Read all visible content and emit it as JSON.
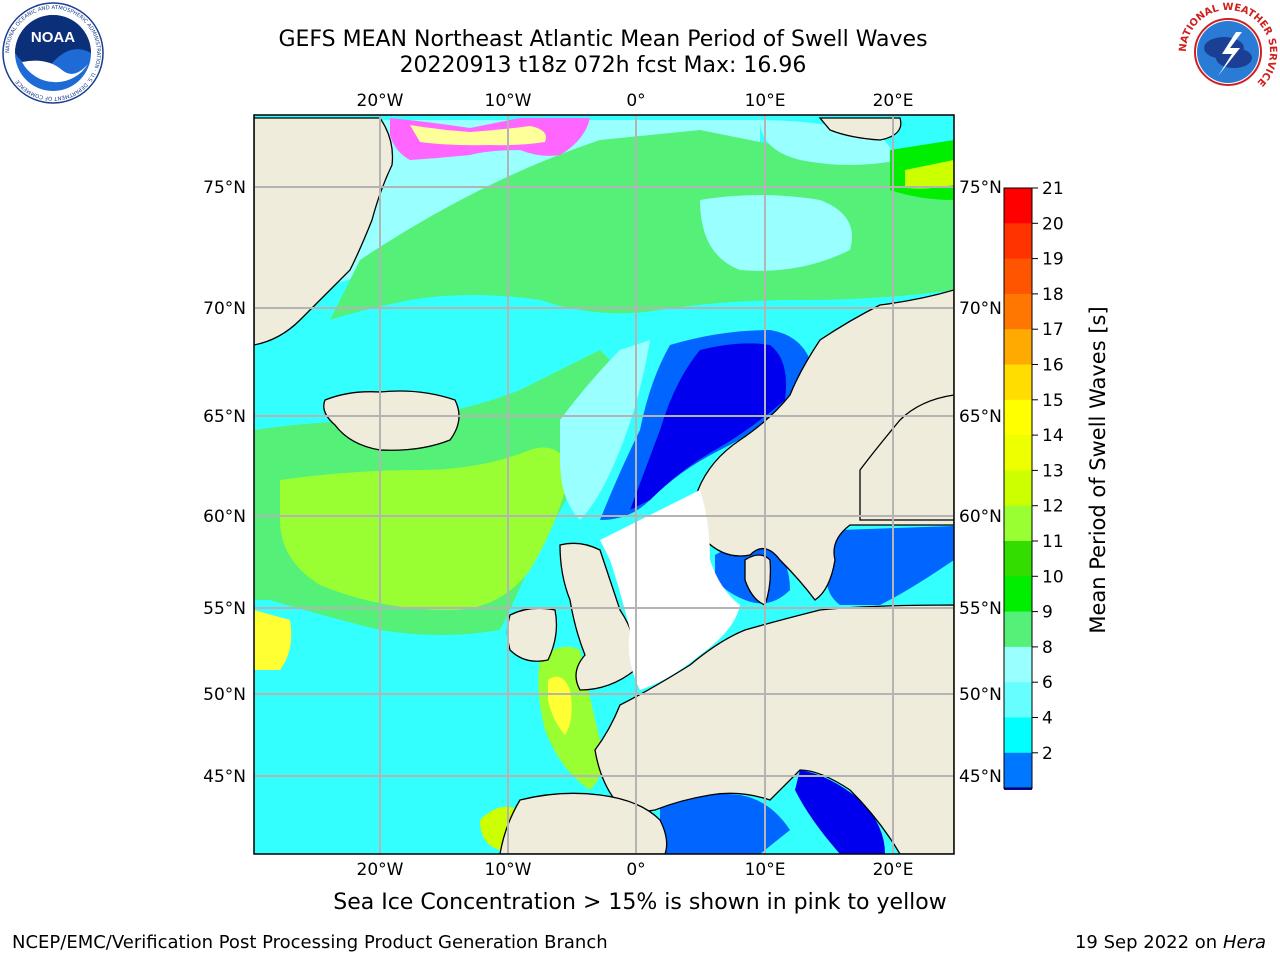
{
  "title": {
    "line1": "GEFS MEAN Northeast Atlantic Mean Period of Swell Waves",
    "line2": "20220913 t18z 072h fcst   Max: 16.96"
  },
  "map": {
    "lon_labels": [
      "20°W",
      "10°W",
      "0°",
      "10°E",
      "20°E"
    ],
    "lat_labels": [
      "75°N",
      "70°N",
      "65°N",
      "60°N",
      "55°N",
      "50°N",
      "45°N"
    ],
    "colors": {
      "land": "#efecdc",
      "ocean_base": "#33ffff",
      "ocean_alt": "#99ffff",
      "swell_green": "#55f077",
      "swell_lime": "#99ff33",
      "swell_bright": "#00ee00",
      "short_blue": "#0000ee",
      "mid_blue": "#0066ff",
      "ice_pink": "#ff66ff",
      "ice_yellow": "#ffff33",
      "grid": "#b4b4b4"
    }
  },
  "colorbar": {
    "label": "Mean Period of Swell Waves [s]",
    "ticks": [
      "21",
      "20",
      "19",
      "18",
      "17",
      "16",
      "15",
      "14",
      "13",
      "12",
      "11",
      "10",
      "9",
      "8",
      "6",
      "4",
      "2"
    ],
    "colors": [
      "#ff0000",
      "#ff3300",
      "#ff5500",
      "#ff7700",
      "#ffaa00",
      "#ffdd00",
      "#ffff00",
      "#eeff00",
      "#ccff00",
      "#99ff33",
      "#33dd00",
      "#00ee00",
      "#55f077",
      "#99ffff",
      "#66ffff",
      "#00ffff",
      "#0077ff",
      "#0000ee"
    ]
  },
  "subtitle": "Sea Ice Concentration > 15% is shown in pink to yellow",
  "footer": {
    "left": "NCEP/EMC/Verification Post Processing Product Generation Branch",
    "date": "19 Sep 2022 on",
    "host": "Hera"
  },
  "logos": {
    "noaa_text": "NOAA",
    "noaa_ring": "NATIONAL OCEANIC AND ATMOSPHERIC ADMINISTRATION · U.S. DEPARTMENT OF COMMERCE",
    "nws_ring": "NATIONAL WEATHER SERVICE"
  }
}
